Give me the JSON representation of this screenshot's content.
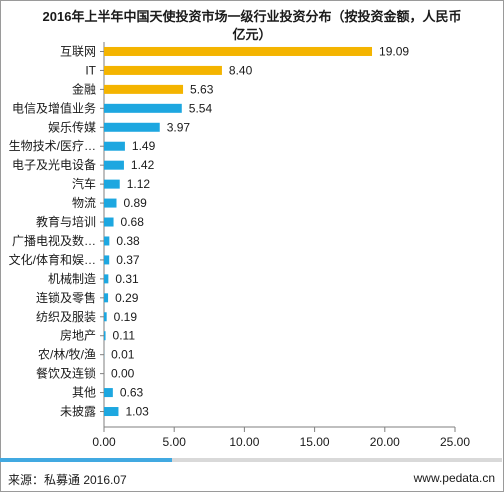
{
  "chart_data": {
    "type": "bar",
    "orientation": "horizontal",
    "title_lines": [
      "2016年上半年中国天使投资市场一级行业投资分布（按投资金额，人民币",
      "亿元）"
    ],
    "categories": [
      "互联网",
      "IT",
      "金融",
      "电信及增值业务",
      "娱乐传媒",
      "生物技术/医疗…",
      "电子及光电设备",
      "汽车",
      "物流",
      "教育与培训",
      "广播电视及数…",
      "文化/体育和娱…",
      "机械制造",
      "连锁及零售",
      "纺织及服装",
      "房地产",
      "农/林/牧/渔",
      "餐饮及连锁",
      "其他",
      "未披露"
    ],
    "values": [
      19.09,
      8.4,
      5.63,
      5.54,
      3.97,
      1.49,
      1.42,
      1.12,
      0.89,
      0.68,
      0.38,
      0.37,
      0.31,
      0.29,
      0.19,
      0.11,
      0.01,
      0.0,
      0.63,
      1.03
    ],
    "value_labels": [
      "19.09",
      "8.40",
      "5.63",
      "5.54",
      "3.97",
      "1.49",
      "1.42",
      "1.12",
      "0.89",
      "0.68",
      "0.38",
      "0.37",
      "0.31",
      "0.29",
      "0.19",
      "0.11",
      "0.01",
      "0.00",
      "0.63",
      "1.03"
    ],
    "bar_colors": [
      "#f4b400",
      "#f4b400",
      "#f4b400",
      "#1da7e0",
      "#1da7e0",
      "#1da7e0",
      "#1da7e0",
      "#1da7e0",
      "#1da7e0",
      "#1da7e0",
      "#1da7e0",
      "#1da7e0",
      "#1da7e0",
      "#1da7e0",
      "#1da7e0",
      "#1da7e0",
      "#1da7e0",
      "#1da7e0",
      "#1da7e0",
      "#1da7e0"
    ],
    "xlim": [
      0,
      25
    ],
    "xticks": [
      0,
      5,
      10,
      15,
      20,
      25
    ],
    "xtick_labels": [
      "0.00",
      "5.00",
      "10.00",
      "15.00",
      "20.00",
      "25.00"
    ],
    "grid": false,
    "legend": "none"
  },
  "footer": {
    "source": "来源：私募通 2016.07",
    "website": "www.pedata.cn",
    "accent_color": "#41a9e1",
    "track_color": "#d9d9d9"
  }
}
